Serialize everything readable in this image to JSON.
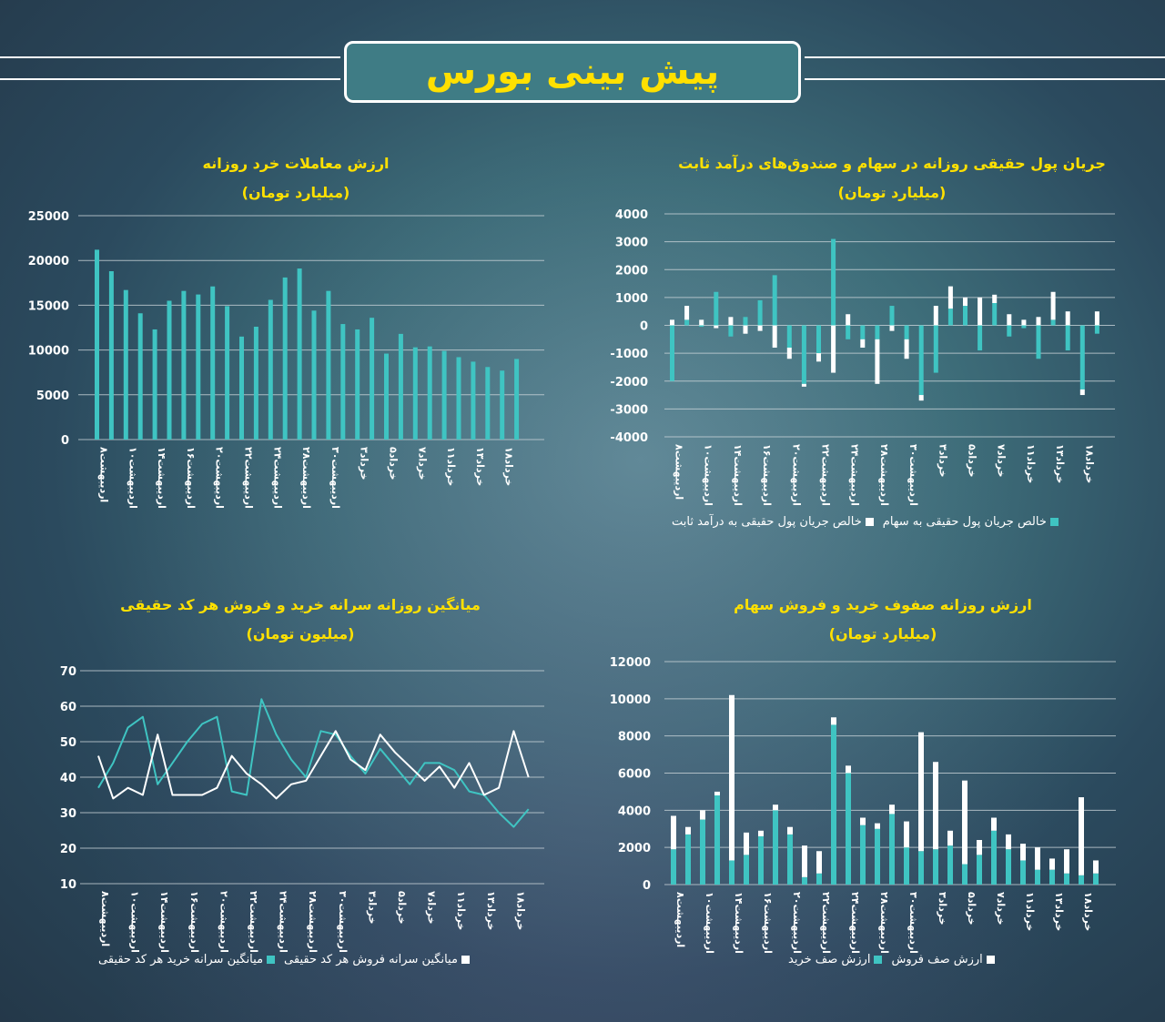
{
  "header": {
    "title": "پیش بینی بورس"
  },
  "colors": {
    "teal": "#3fc4c2",
    "white": "#ffffff",
    "yellow": "#ffe000",
    "grid": "#c9d3d8"
  },
  "categories": [
    "اردیبهشت۸",
    "اردیبهشت۱۰",
    "اردیبهشت۱۴",
    "اردیبهشت۱۶",
    "اردیبهشت۲۰",
    "اردیبهشت۲۲",
    "اردیبهشت۲۴",
    "اردیبهشت۲۸",
    "اردیبهشت۳۰",
    "خرداد۳",
    "خرداد۵",
    "خرداد۷",
    "خرداد۱۱",
    "خرداد۱۳",
    "خرداد۱۸"
  ],
  "chart_data": [
    {
      "id": "retail",
      "type": "bar",
      "title": "ارزش معاملات خرد روزانه",
      "subtitle": "(میلیارد تومان)",
      "ylim": [
        0,
        25000
      ],
      "yticks": [
        "0",
        "5000",
        "10000",
        "15000",
        "20000",
        "25000"
      ],
      "grid": true,
      "values": [
        21200,
        18800,
        16700,
        14100,
        12300,
        15500,
        16600,
        16200,
        17100,
        14900,
        11500,
        12600,
        15600,
        18100,
        19100,
        14400,
        16600,
        12900,
        12300,
        13600,
        9600,
        11800,
        10300,
        10400,
        9900,
        9200,
        8700,
        8100,
        7700,
        9000
      ]
    },
    {
      "id": "flow",
      "type": "bar",
      "title": "جریان پول حقیقی روزانه در سهام و صندوق‌های درآمد ثابت",
      "subtitle": "(میلیارد تومان)",
      "ylim": [
        -4000,
        4000
      ],
      "yticks": [
        "-4000",
        "-3000",
        "-2000",
        "-1000",
        "0",
        "1000",
        "2000",
        "3000",
        "4000"
      ],
      "grid": true,
      "legend": "bottom",
      "series": [
        {
          "name": "خالص جریان پول حقیقی به سهام",
          "values": [
            -2000,
            200,
            -50,
            1200,
            -400,
            300,
            900,
            1800,
            -800,
            -2100,
            -1000,
            3100,
            -500,
            -500,
            -500,
            700,
            -500,
            -2500,
            -1700,
            600,
            700,
            -900,
            800,
            -400,
            -100,
            -1200,
            200,
            -900,
            -2300,
            -300
          ]
        },
        {
          "name": "خالص جریان پول حقیقی به درآمد ثابت",
          "values": [
            200,
            500,
            200,
            -100,
            300,
            -300,
            -200,
            -800,
            -400,
            -100,
            -300,
            -1700,
            400,
            -300,
            -1600,
            -200,
            -700,
            -200,
            700,
            800,
            300,
            1000,
            300,
            400,
            200,
            300,
            1000,
            500,
            -200,
            500
          ]
        }
      ]
    },
    {
      "id": "percapita",
      "type": "line",
      "title": "میانگین روزانه سرانه خرید و فروش هر کد حقیقی",
      "subtitle": "(میلیون تومان)",
      "ylim": [
        10,
        70
      ],
      "yticks": [
        "10",
        "20",
        "30",
        "40",
        "50",
        "60",
        "70"
      ],
      "grid": true,
      "legend": "bottom",
      "series": [
        {
          "name": "میانگین سرانه خرید هر کد حقیقی",
          "values": [
            37,
            44,
            54,
            57,
            38,
            44,
            50,
            55,
            57,
            36,
            35,
            62,
            52,
            45,
            40,
            53,
            52,
            46,
            41,
            48,
            43,
            38,
            44,
            44,
            42,
            36,
            35,
            30,
            26,
            31
          ]
        },
        {
          "name": "میانگین سرانه فروش هر کد حقیقی",
          "values": [
            46,
            34,
            37,
            35,
            52,
            35,
            35,
            35,
            37,
            46,
            41,
            38,
            34,
            38,
            39,
            46,
            53,
            45,
            42,
            52,
            47,
            43,
            39,
            43,
            37,
            44,
            35,
            37,
            53,
            40
          ]
        }
      ]
    },
    {
      "id": "queues",
      "type": "bar",
      "title": "ارزش روزانه صفوف خرید و فروش سهام",
      "subtitle": "(میلیارد تومان)",
      "ylim": [
        0,
        12000
      ],
      "yticks": [
        "0",
        "2000",
        "4000",
        "6000",
        "8000",
        "10000",
        "12000"
      ],
      "grid": true,
      "legend": "bottom",
      "series": [
        {
          "name": "ارزش صف خرید",
          "values": [
            1900,
            2700,
            3500,
            4800,
            1300,
            1600,
            2600,
            4000,
            2700,
            400,
            600,
            8600,
            6000,
            3200,
            3000,
            3800,
            2000,
            1800,
            1900,
            2100,
            1100,
            1600,
            2900,
            1900,
            1300,
            800,
            800,
            600,
            500,
            600
          ]
        },
        {
          "name": "ارزش صف فروش",
          "values": [
            1800,
            400,
            500,
            200,
            8900,
            1200,
            300,
            300,
            400,
            1700,
            1200,
            400,
            400,
            400,
            300,
            500,
            1400,
            6400,
            4700,
            800,
            4500,
            800,
            700,
            800,
            900,
            1200,
            600,
            1300,
            4200,
            700
          ]
        }
      ]
    }
  ]
}
